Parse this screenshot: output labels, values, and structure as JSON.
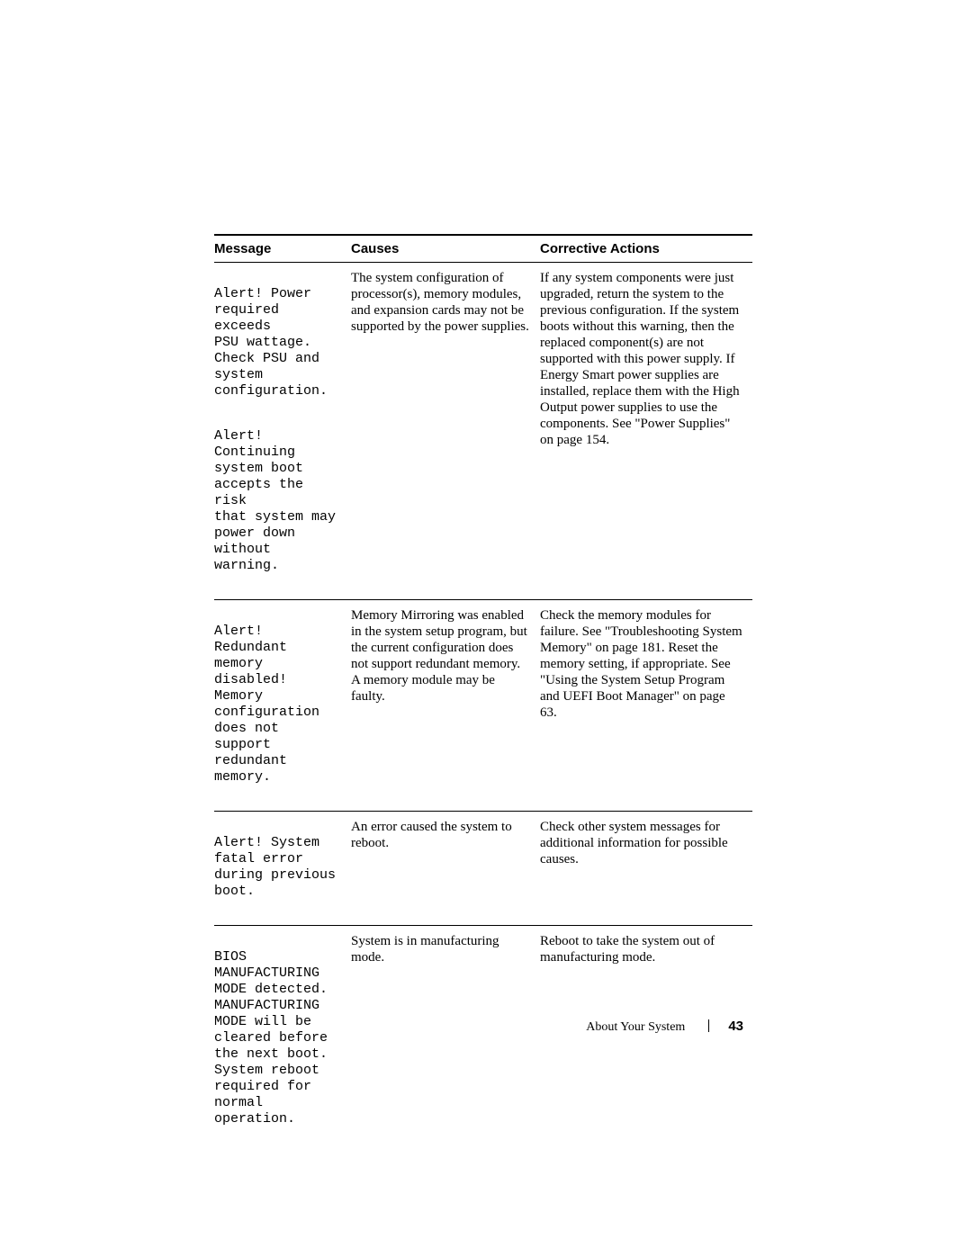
{
  "table": {
    "headers": {
      "message": "Message",
      "causes": "Causes",
      "actions": "Corrective Actions"
    },
    "rows": [
      {
        "messages": [
          "Alert! Power\nrequired exceeds\nPSU wattage.\nCheck PSU and\nsystem\nconfiguration.",
          "Alert!\nContinuing\nsystem boot\naccepts the risk\nthat system may\npower down\nwithout warning."
        ],
        "causes": "The system configuration of processor(s), memory modules, and expansion cards may not be supported by the power supplies.",
        "actions": "If any system components were just upgraded, return the system to the previous configuration. If the system boots without this warning, then the replaced component(s) are not supported with this power supply. If Energy Smart power supplies are installed, replace them with the High Output power supplies to use the components. See \"Power Supplies\" on page 154."
      },
      {
        "messages": [
          "Alert! Redundant\nmemory disabled!\nMemory\nconfiguration\ndoes not support\nredundant\nmemory."
        ],
        "causes": "Memory Mirroring was enabled in the system setup program, but the current configuration does not support redundant memory. A memory module may be faulty.",
        "actions": "Check the memory modules for failure. See \"Troubleshooting System Memory\" on page 181. Reset the memory setting, if appropriate. See \"Using the System Setup Program and UEFI Boot Manager\" on page 63."
      },
      {
        "messages": [
          "Alert! System\nfatal error\nduring previous\nboot."
        ],
        "causes": "An error caused the system to reboot.",
        "actions": "Check other system messages for additional information for possible causes."
      },
      {
        "messages": [
          "BIOS\nMANUFACTURING\nMODE detected.\nMANUFACTURING\nMODE will be\ncleared before\nthe next boot.\nSystem reboot\nrequired for\nnormal\noperation."
        ],
        "causes": "System is in manufacturing mode.",
        "actions": "Reboot to take the system out of manufacturing mode."
      }
    ]
  },
  "footer": {
    "section": "About Your System",
    "page_number": "43"
  }
}
